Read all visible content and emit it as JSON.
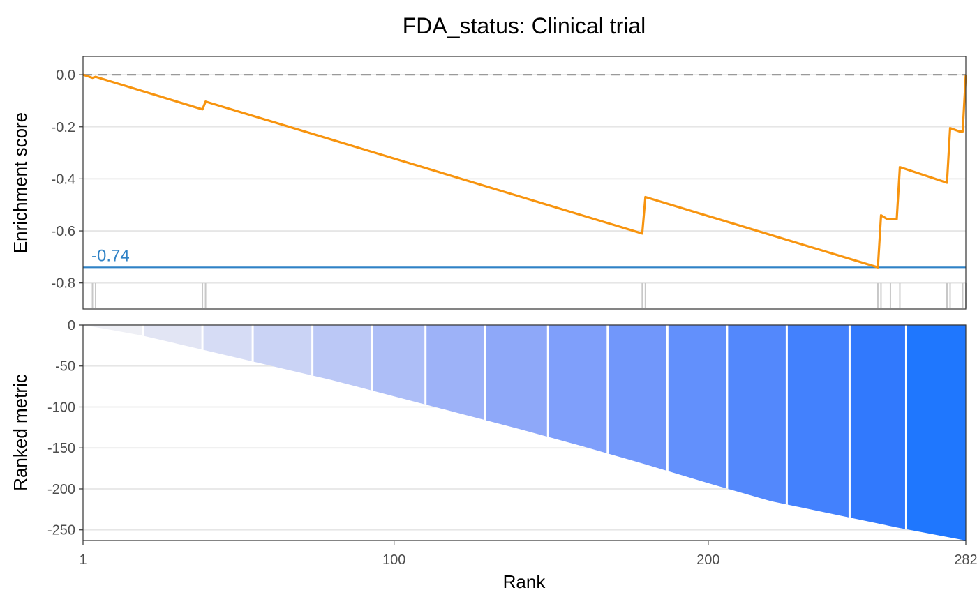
{
  "chart_data": {
    "title": "FDA_status: Clinical trial",
    "panels": [
      {
        "type": "line",
        "ylabel": "Enrichment score",
        "ylim": [
          -0.9,
          0.07
        ],
        "yticks": [
          0.0,
          -0.2,
          -0.4,
          -0.6,
          -0.8
        ],
        "ytick_labels": [
          "0.0",
          "-0.2",
          "-0.4",
          "-0.6",
          "-0.8"
        ],
        "grid": true,
        "zero_line": 0.0,
        "min_es": -0.74,
        "min_es_label": "-0.74",
        "series": [
          {
            "color": "#f7940f",
            "x": [
              1,
              4,
              5,
              39,
              40,
              179,
              180,
              254,
              255,
              257,
              258,
              260,
              261,
              276,
              277,
              280,
              281,
              282
            ],
            "y": [
              0.0,
              -0.012,
              -0.008,
              -0.133,
              -0.103,
              -0.61,
              -0.47,
              -0.74,
              -0.54,
              -0.555,
              -0.555,
              -0.555,
              -0.355,
              -0.415,
              -0.205,
              -0.218,
              -0.218,
              0.0
            ]
          }
        ],
        "hit_ranks": [
          4,
          5,
          39,
          40,
          179,
          180,
          254,
          255,
          258,
          261,
          276,
          277,
          281,
          282
        ]
      },
      {
        "type": "area",
        "ylabel": "Ranked metric",
        "ylim": [
          -263,
          0
        ],
        "yticks": [
          0,
          -50,
          -100,
          -150,
          -200,
          -250
        ],
        "ytick_labels": [
          "0",
          "-50",
          "-100",
          "-150",
          "-200",
          "-250"
        ],
        "grid": true,
        "x": [
          1,
          10,
          20,
          30,
          40,
          50,
          60,
          80,
          100,
          120,
          140,
          160,
          180,
          200,
          220,
          240,
          260,
          282
        ],
        "values": [
          0,
          -6,
          -13,
          -22,
          -31,
          -40,
          -49,
          -67,
          -87,
          -107,
          -127,
          -148,
          -170,
          -193,
          -215,
          -231,
          -247,
          -263
        ],
        "bands": [
          {
            "x0": 1,
            "x1": 20,
            "color": "#eeeff5"
          },
          {
            "x0": 20,
            "x1": 39,
            "color": "#e2e5f4"
          },
          {
            "x0": 39,
            "x1": 55,
            "color": "#d6dcf5"
          },
          {
            "x0": 55,
            "x1": 74,
            "color": "#cad3f5"
          },
          {
            "x0": 74,
            "x1": 93,
            "color": "#bbc8f6"
          },
          {
            "x0": 93,
            "x1": 110,
            "color": "#adbef7"
          },
          {
            "x0": 110,
            "x1": 129,
            "color": "#9db2f8"
          },
          {
            "x0": 129,
            "x1": 149,
            "color": "#8ea8f9"
          },
          {
            "x0": 149,
            "x1": 168,
            "color": "#7f9ffb"
          },
          {
            "x0": 168,
            "x1": 187,
            "color": "#7197fb"
          },
          {
            "x0": 187,
            "x1": 206,
            "color": "#6290fc"
          },
          {
            "x0": 206,
            "x1": 225,
            "color": "#5388fc"
          },
          {
            "x0": 225,
            "x1": 245,
            "color": "#4381fd"
          },
          {
            "x0": 245,
            "x1": 263,
            "color": "#3179fd"
          },
          {
            "x0": 263,
            "x1": 282,
            "color": "#1f77fe"
          }
        ]
      }
    ],
    "xlabel": "Rank",
    "xlim": [
      1,
      282
    ],
    "xticks": [
      1,
      100,
      200,
      282
    ],
    "xtick_labels": [
      "1",
      "100",
      "200",
      "282"
    ]
  }
}
